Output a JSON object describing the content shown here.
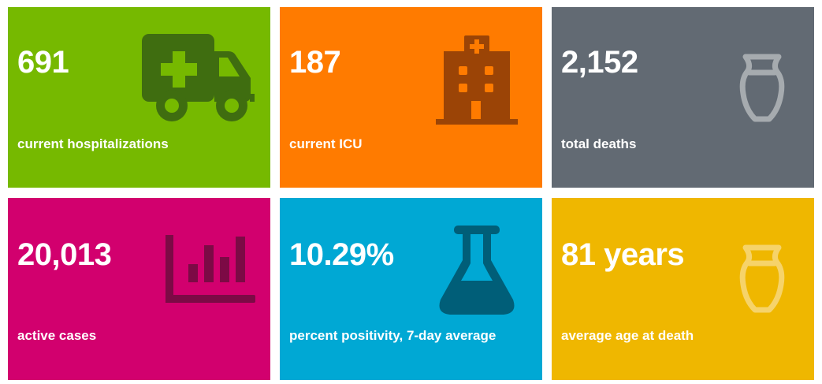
{
  "tiles": [
    {
      "value": "691",
      "label": "current hospitalizations",
      "color": "#76b900",
      "icon": "ambulance-icon",
      "icon_color": "#3f6d10"
    },
    {
      "value": "187",
      "label": "current ICU",
      "color": "#ff7b00",
      "icon": "hospital-icon",
      "icon_color": "#9b4406"
    },
    {
      "value": "2,152",
      "label": "total deaths",
      "color": "#626a73",
      "icon": "urn-icon",
      "icon_color": "#a6abaf"
    },
    {
      "value": "20,013",
      "label": "active cases",
      "color": "#d2006e",
      "icon": "bar-chart-icon",
      "icon_color": "#7c0a45"
    },
    {
      "value": "10.29%",
      "label": "percent positivity, 7-day average",
      "color": "#00a8d4",
      "icon": "flask-icon",
      "icon_color": "#005e78"
    },
    {
      "value": "81 years",
      "label": "average age at death",
      "color": "#efb700",
      "icon": "urn-icon",
      "icon_color": "#f6d36a"
    }
  ]
}
